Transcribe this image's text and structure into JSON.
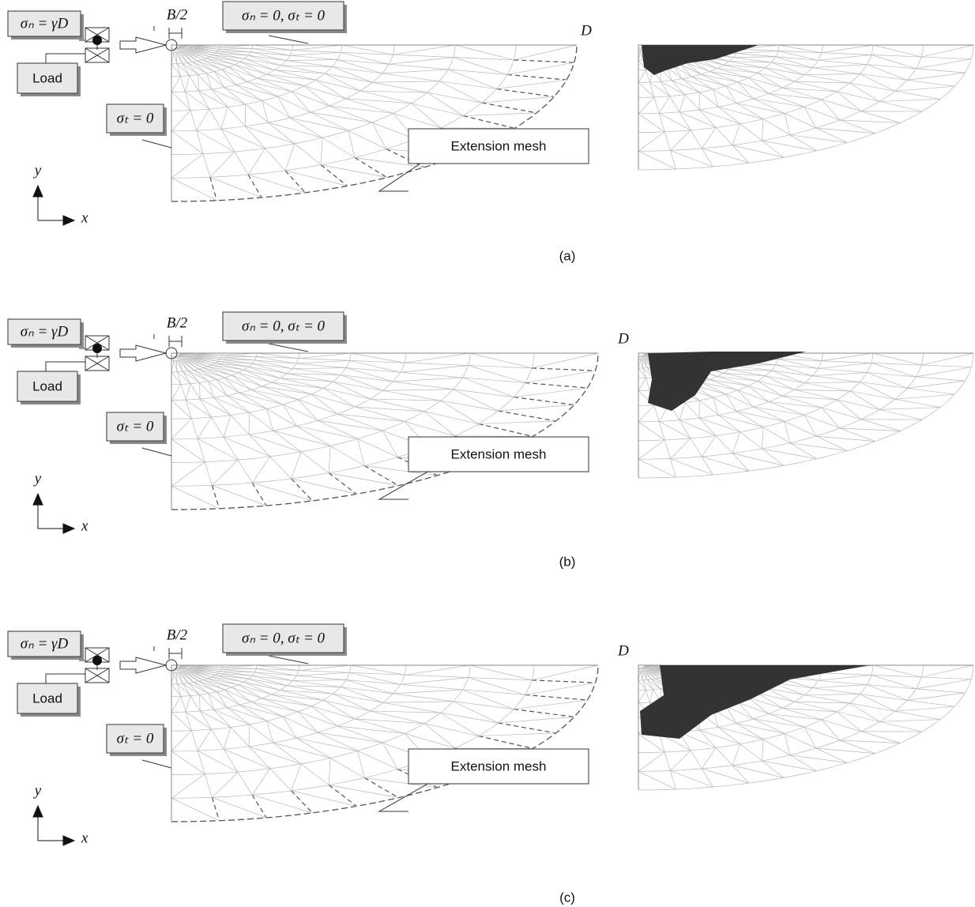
{
  "panels": [
    {
      "caption": "(a)",
      "load_condition": "σₙ = γD",
      "load": "Load",
      "surface_condition": "σₙ = 0, σₜ = 0",
      "side_condition": "σₜ = 0",
      "width": "B/2",
      "depth": "D",
      "extension": "Extension mesh",
      "axis_y": "y",
      "axis_x": "x"
    },
    {
      "caption": "(b)",
      "load_condition": "σₙ = γD",
      "load": "Load",
      "surface_condition": "σₙ = 0, σₜ = 0",
      "side_condition": "σₜ = 0",
      "width": "B/2",
      "depth": "D",
      "extension": "Extension mesh",
      "axis_y": "y",
      "axis_x": "x"
    },
    {
      "caption": "(c)",
      "load_condition": "σₙ = γD",
      "load": "Load",
      "surface_condition": "σₙ = 0, σₜ = 0",
      "side_condition": "σₜ = 0",
      "width": "B/2",
      "depth": "D",
      "extension": "Extension mesh",
      "axis_y": "y",
      "axis_x": "x"
    }
  ]
}
